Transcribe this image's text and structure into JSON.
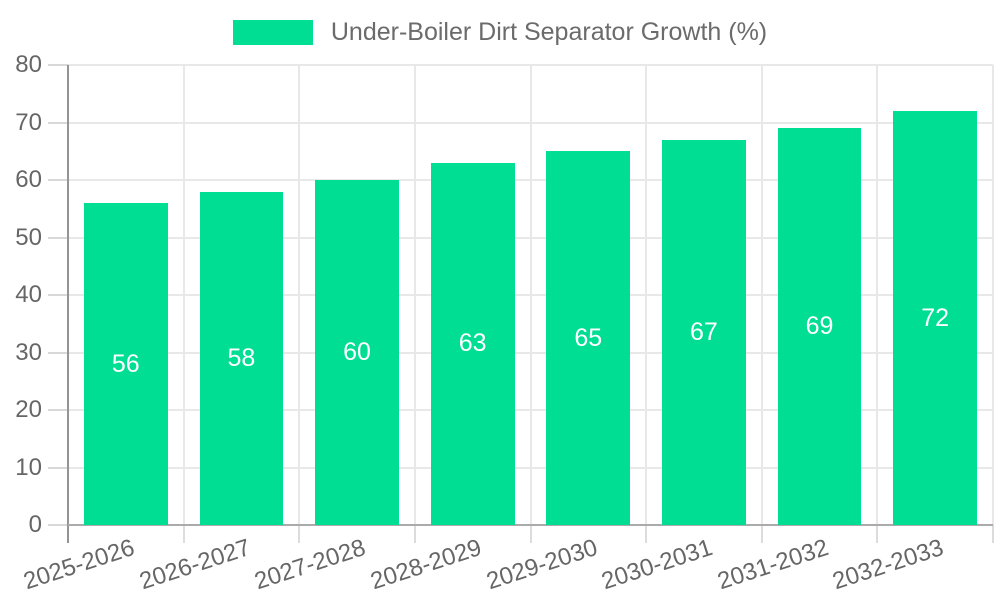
{
  "legend": {
    "label": "Under-Boiler Dirt Separator Growth (%)"
  },
  "chart_data": {
    "type": "bar",
    "title": "Under-Boiler Dirt Separator Growth (%)",
    "categories": [
      "2025-2026",
      "2026-2027",
      "2027-2028",
      "2028-2029",
      "2029-2030",
      "2030-2031",
      "2031-2032",
      "2032-2033"
    ],
    "values": [
      56,
      58,
      60,
      63,
      65,
      67,
      69,
      72
    ],
    "xlabel": "",
    "ylabel": "",
    "ylim": [
      0,
      80
    ],
    "yticks": [
      0,
      10,
      20,
      30,
      40,
      50,
      60,
      70,
      80
    ],
    "ytick_step": 10,
    "grid": true,
    "legend_position": "top",
    "bar_color": "#00DE94",
    "bar_label_color": "#ffffff",
    "bar_label_position": "middle-inside",
    "axis_text_color": "#666666",
    "x_label_rotation_deg": -18
  }
}
